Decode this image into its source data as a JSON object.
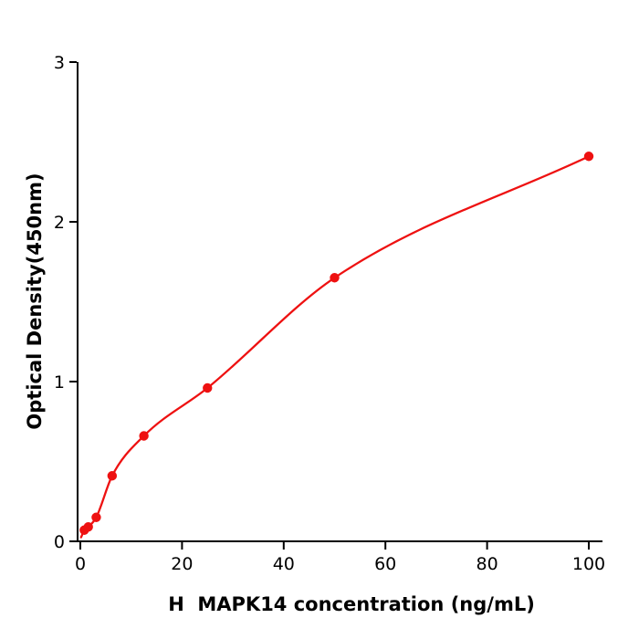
{
  "figure": {
    "background": "#ffffff"
  },
  "chart_data": {
    "type": "scatter",
    "title": "",
    "xlabel": "H  MAPK14 concentration (ng/mL)",
    "ylabel": "Optical Density(450nm)",
    "xlim": [
      -0.5,
      103
    ],
    "ylim": [
      0,
      3
    ],
    "xticks": [
      0,
      20,
      40,
      60,
      80,
      100
    ],
    "yticks": [
      0,
      1,
      2,
      3
    ],
    "grid": false,
    "legend": null,
    "fit_curve": true,
    "marker_color": "#ee1111",
    "curve_color": "#ee1111",
    "axis_color": "#000000",
    "points": [
      {
        "x": 0.78,
        "y": 0.07
      },
      {
        "x": 1.56,
        "y": 0.09
      },
      {
        "x": 3.13,
        "y": 0.15
      },
      {
        "x": 6.25,
        "y": 0.41
      },
      {
        "x": 12.5,
        "y": 0.66
      },
      {
        "x": 25,
        "y": 0.96
      },
      {
        "x": 50,
        "y": 1.65
      },
      {
        "x": 100,
        "y": 2.41
      }
    ],
    "curve_start": {
      "x": 0.15,
      "y": 0.025
    }
  }
}
